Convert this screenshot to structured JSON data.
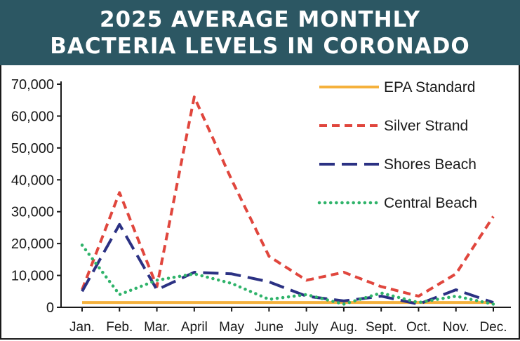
{
  "title_lines": [
    "2025 AVERAGE MONTHLY",
    "BACTERIA LEVELS IN CORONADO"
  ],
  "colors": {
    "banner": "#2c5763",
    "epa": "#f5b13c",
    "silver": "#e0463d",
    "shores": "#2b3183",
    "central": "#2fb36a"
  },
  "chart_data": {
    "type": "line",
    "title": "2025 AVERAGE MONTHLY BACTERIA LEVELS IN CORONADO",
    "xlabel": "",
    "ylabel": "",
    "categories": [
      "Jan.",
      "Feb.",
      "Mar.",
      "April",
      "May",
      "June",
      "July",
      "Aug.",
      "Sept.",
      "Oct.",
      "Nov.",
      "Dec."
    ],
    "ylim": [
      0,
      70000
    ],
    "yticks": [
      0,
      10000,
      20000,
      30000,
      40000,
      50000,
      60000,
      70000
    ],
    "ytick_labels": [
      "0",
      "10,000",
      "20,000",
      "30,000",
      "40,000",
      "50,000",
      "60,000",
      "70,000"
    ],
    "grid": false,
    "legend_position": "top-right",
    "series": [
      {
        "name": "EPA Standard",
        "style": "solid",
        "color": "#f5b13c",
        "values": [
          1500,
          1500,
          1500,
          1500,
          1500,
          1500,
          1500,
          1500,
          1500,
          1500,
          1500,
          1500
        ]
      },
      {
        "name": "Silver Strand",
        "style": "short-dash",
        "color": "#e0463d",
        "values": [
          5500,
          36000,
          6500,
          66000,
          40000,
          16000,
          8500,
          11000,
          6500,
          3500,
          10500,
          28500
        ]
      },
      {
        "name": "Shores Beach",
        "style": "long-dash",
        "color": "#2b3183",
        "values": [
          5000,
          26000,
          5500,
          11000,
          10500,
          8000,
          3500,
          2000,
          3500,
          1000,
          5500,
          1500
        ]
      },
      {
        "name": "Central Beach",
        "style": "dotted",
        "color": "#2fb36a",
        "values": [
          19500,
          4000,
          8500,
          10500,
          7500,
          2500,
          4000,
          1000,
          4500,
          1500,
          3500,
          1000
        ]
      }
    ]
  }
}
